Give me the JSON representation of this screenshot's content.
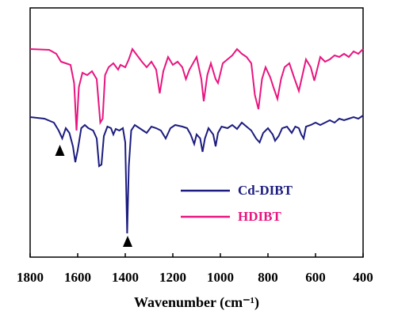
{
  "chart_data": {
    "type": "line",
    "x_label": "Wavenumber (cm⁻¹)",
    "xlim": [
      1800,
      400
    ],
    "xticks": [
      1800,
      1600,
      1400,
      1200,
      1000,
      800,
      600,
      400
    ],
    "ylim": [
      0,
      315
    ],
    "legend": "lower right",
    "series": [
      {
        "name": "Cd-DIBT",
        "color": "#1c1c80",
        "x": [
          1800,
          1740,
          1700,
          1680,
          1665,
          1650,
          1635,
          1620,
          1610,
          1600,
          1585,
          1570,
          1555,
          1535,
          1520,
          1510,
          1500,
          1490,
          1475,
          1460,
          1450,
          1440,
          1425,
          1410,
          1400,
          1392,
          1385,
          1375,
          1360,
          1340,
          1310,
          1290,
          1270,
          1250,
          1230,
          1210,
          1190,
          1160,
          1140,
          1125,
          1110,
          1100,
          1085,
          1075,
          1065,
          1050,
          1030,
          1020,
          1010,
          995,
          970,
          950,
          930,
          910,
          890,
          870,
          850,
          835,
          820,
          800,
          780,
          770,
          755,
          740,
          720,
          700,
          685,
          670,
          660,
          650,
          640,
          620,
          600,
          580,
          560,
          540,
          520,
          500,
          480,
          460,
          440,
          420,
          400
        ],
        "values": [
          177,
          175,
          170,
          160,
          150,
          163,
          157,
          140,
          120,
          135,
          163,
          167,
          163,
          160,
          150,
          115,
          117,
          153,
          165,
          163,
          155,
          162,
          160,
          163,
          145,
          30,
          115,
          160,
          167,
          163,
          157,
          165,
          163,
          160,
          150,
          163,
          167,
          165,
          163,
          155,
          143,
          155,
          150,
          133,
          150,
          163,
          155,
          140,
          157,
          165,
          163,
          167,
          162,
          170,
          165,
          160,
          150,
          145,
          157,
          163,
          155,
          147,
          153,
          163,
          165,
          157,
          165,
          163,
          155,
          150,
          165,
          167,
          170,
          167,
          170,
          173,
          170,
          175,
          173,
          175,
          177,
          175,
          179
        ]
      },
      {
        "name": "HDIBT",
        "color": "#e8157f",
        "x": [
          1800,
          1720,
          1690,
          1670,
          1650,
          1630,
          1615,
          1605,
          1595,
          1580,
          1560,
          1540,
          1520,
          1505,
          1495,
          1485,
          1470,
          1450,
          1430,
          1420,
          1400,
          1385,
          1370,
          1350,
          1330,
          1310,
          1290,
          1270,
          1255,
          1240,
          1220,
          1200,
          1180,
          1160,
          1145,
          1130,
          1100,
          1080,
          1070,
          1055,
          1040,
          1020,
          1010,
          990,
          970,
          950,
          930,
          910,
          890,
          870,
          855,
          840,
          825,
          810,
          790,
          775,
          760,
          745,
          730,
          710,
          690,
          670,
          655,
          640,
          620,
          605,
          595,
          580,
          560,
          540,
          520,
          500,
          480,
          460,
          440,
          420,
          400
        ],
        "values": [
          263,
          262,
          257,
          247,
          245,
          243,
          220,
          160,
          215,
          233,
          230,
          235,
          225,
          170,
          175,
          230,
          240,
          245,
          237,
          243,
          240,
          250,
          263,
          255,
          247,
          240,
          247,
          237,
          207,
          235,
          253,
          243,
          247,
          240,
          225,
          237,
          253,
          225,
          197,
          230,
          245,
          225,
          220,
          245,
          250,
          255,
          263,
          257,
          253,
          245,
          205,
          187,
          225,
          240,
          227,
          213,
          200,
          225,
          240,
          245,
          227,
          210,
          230,
          250,
          240,
          223,
          235,
          253,
          247,
          250,
          255,
          253,
          257,
          253,
          260,
          257,
          263
        ]
      }
    ],
    "markers": {
      "x": [
        1675,
        1390
      ],
      "y": [
        135,
        20
      ]
    }
  }
}
